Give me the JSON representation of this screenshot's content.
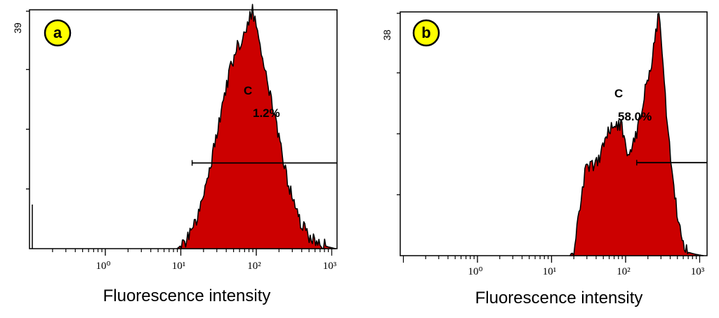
{
  "chart_data": [
    {
      "type": "area",
      "badge": "a",
      "ymax_label": "39",
      "ylim": [
        0,
        39
      ],
      "x_scale": "log",
      "xlim_decades": [
        0,
        3
      ],
      "x_ticks": [
        "10⁰",
        "10¹",
        "10²",
        "10³"
      ],
      "xlabel": "Fluorescence intensity",
      "gate": {
        "label": "C",
        "percent": "1.2%",
        "from_decade": 1.15,
        "y": 14
      },
      "series": [
        {
          "log_x": [
            0.95,
            1.05,
            1.15,
            1.25,
            1.35,
            1.45,
            1.55,
            1.65,
            1.75,
            1.85,
            1.9,
            1.95,
            2.0,
            2.05,
            2.1,
            2.2,
            2.3,
            2.4,
            2.5,
            2.6,
            2.7,
            2.8,
            2.95,
            3.05
          ],
          "counts": [
            0,
            1,
            3,
            6,
            11,
            17,
            23,
            29,
            33,
            35,
            37,
            39,
            36,
            33,
            30,
            24,
            18,
            12,
            7,
            4,
            2,
            1,
            0.3,
            0
          ]
        }
      ]
    },
    {
      "type": "area",
      "badge": "b",
      "ymax_label": "38",
      "ylim": [
        0,
        38
      ],
      "x_scale": "log",
      "xlim_decades": [
        0,
        3
      ],
      "x_ticks": [
        "10⁰",
        "10¹",
        "10²",
        "10³"
      ],
      "xlabel": "Fluorescence intensity",
      "gate": {
        "label": "C",
        "percent": "58.0%",
        "from_decade": 2.15,
        "y": 14.5
      },
      "series": [
        {
          "log_x": [
            1.25,
            1.3,
            1.4,
            1.45,
            1.55,
            1.65,
            1.75,
            1.85,
            1.95,
            2.05,
            2.15,
            2.25,
            2.35,
            2.45,
            2.55,
            2.65,
            2.75,
            2.85,
            2.95,
            3.05
          ],
          "counts": [
            0,
            1,
            8,
            13,
            14,
            15,
            19,
            21,
            20,
            15,
            19,
            25,
            30,
            38,
            22,
            10,
            3,
            0.5,
            0.2,
            0
          ]
        }
      ]
    }
  ]
}
